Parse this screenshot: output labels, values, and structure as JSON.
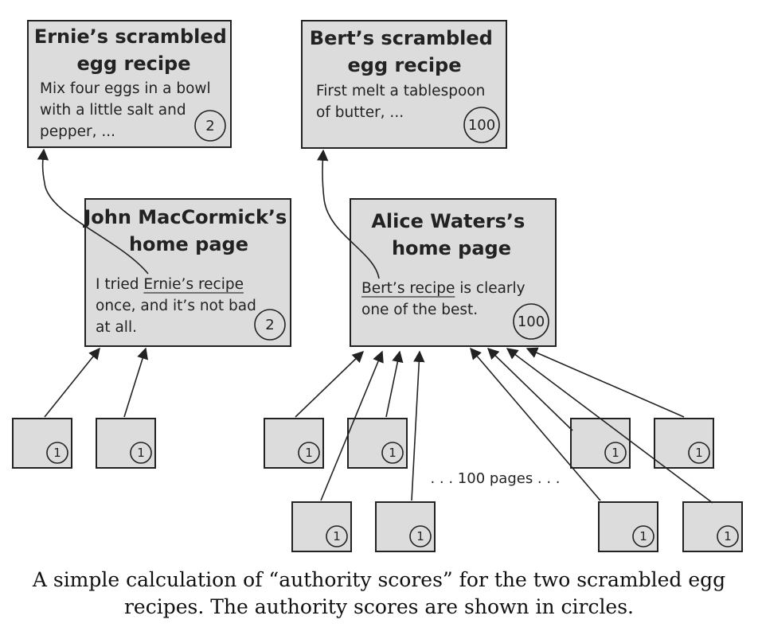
{
  "nodes": {
    "ernie_recipe": {
      "title": [
        "Ernie’s scrambled",
        "egg recipe"
      ],
      "body": [
        "Mix four eggs in a bowl",
        "with a little salt and",
        "pepper, ..."
      ],
      "score": "2"
    },
    "bert_recipe": {
      "title": [
        "Bert’s scrambled",
        "egg recipe"
      ],
      "body": [
        "First melt a tablespoon",
        "of butter, ..."
      ],
      "score": "100"
    },
    "john_page": {
      "title": [
        "John MacCormick’s",
        "home page"
      ],
      "body_prefix": "I tried ",
      "link_text": "Ernie’s recipe",
      "body_rest": [
        "once, and it’s not bad",
        "at all."
      ],
      "score": "2"
    },
    "alice_page": {
      "title": [
        "Alice Waters’s",
        "home page"
      ],
      "link_text": "Bert’s recipe",
      "body_suffix": " is clearly",
      "body_rest": [
        "one of the best."
      ],
      "score": "100"
    }
  },
  "linking_pages": {
    "score": "1",
    "john_count": 2,
    "alice_visible_count": 8,
    "ellipsis_label": ". . . 100 pages . . ."
  },
  "caption": {
    "line1": "A simple calculation of “authority scores” for the two scrambled egg",
    "line2": "recipes. The authority scores are shown in circles."
  }
}
